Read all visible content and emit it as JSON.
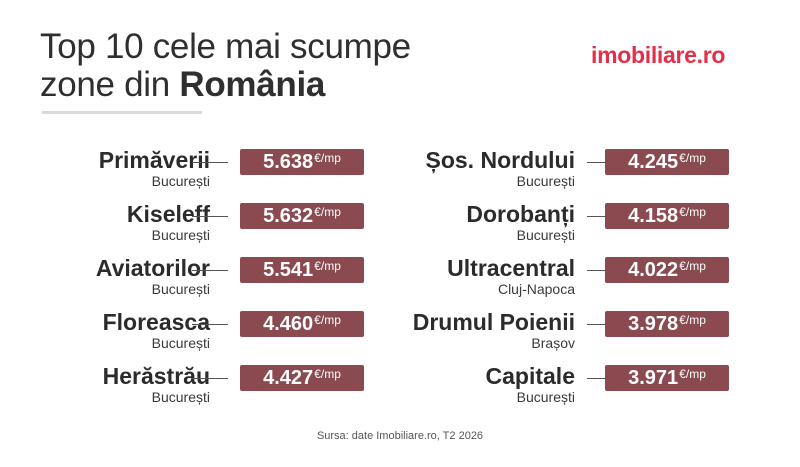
{
  "header": {
    "title_line1": "Top 10 cele mai scumpe",
    "title_line2_prefix": "zone din ",
    "title_line2_bold": "România"
  },
  "brand": {
    "logo_text": "imobiliare.ro",
    "color": "#e2304a"
  },
  "colors": {
    "price_badge": "#8b4a50",
    "text": "#2b2b2b"
  },
  "rankings": {
    "left": [
      {
        "zone": "Primăverii",
        "city": "București",
        "price": "5.638",
        "unit": "€/mp"
      },
      {
        "zone": "Kiseleff",
        "city": "București",
        "price": "5.632",
        "unit": "€/mp"
      },
      {
        "zone": "Aviatorilor",
        "city": "București",
        "price": "5.541",
        "unit": "€/mp"
      },
      {
        "zone": "Floreasca",
        "city": "București",
        "price": "4.460",
        "unit": "€/mp"
      },
      {
        "zone": "Herăstrău",
        "city": "București",
        "price": "4.427",
        "unit": "€/mp"
      }
    ],
    "right": [
      {
        "zone": "Șos. Nordului",
        "city": "București",
        "price": "4.245",
        "unit": "€/mp"
      },
      {
        "zone": "Dorobanți",
        "city": "București",
        "price": "4.158",
        "unit": "€/mp"
      },
      {
        "zone": "Ultracentral",
        "city": "Cluj-Napoca",
        "price": "4.022",
        "unit": "€/mp"
      },
      {
        "zone": "Drumul Poienii",
        "city": "Brașov",
        "price": "3.978",
        "unit": "€/mp"
      },
      {
        "zone": "Capitale",
        "city": "București",
        "price": "3.971",
        "unit": "€/mp"
      }
    ]
  },
  "footer": {
    "source": "Sursa: date Imobiliare.ro, T2 2026"
  }
}
